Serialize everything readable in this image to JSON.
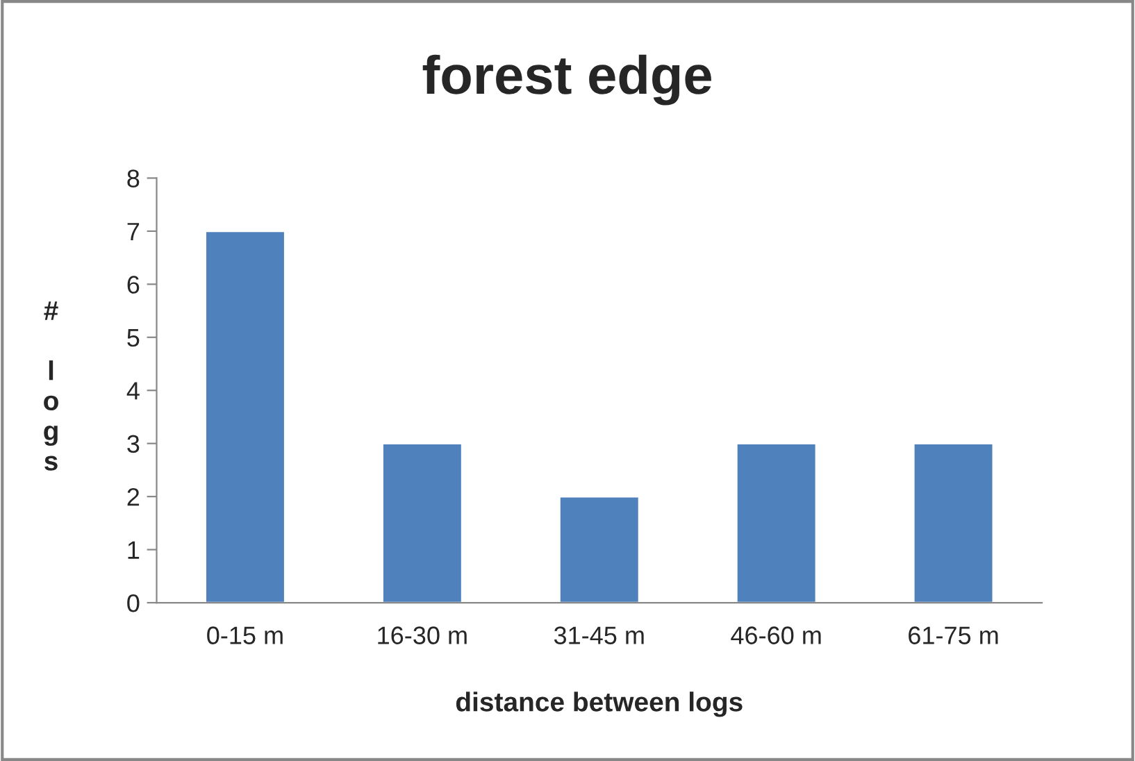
{
  "chart_data": {
    "type": "bar",
    "title": "forest edge",
    "xlabel": "distance between logs",
    "ylabel": "# logs",
    "categories": [
      "0-15 m",
      "16-30 m",
      "31-45 m",
      "46-60 m",
      "61-75 m"
    ],
    "values": [
      7,
      3,
      2,
      3,
      3
    ],
    "color": "#4f81bd",
    "ylim": [
      0,
      8
    ],
    "yticks": [
      0,
      1,
      2,
      3,
      4,
      5,
      6,
      7,
      8
    ],
    "grid": false,
    "legend": false
  }
}
